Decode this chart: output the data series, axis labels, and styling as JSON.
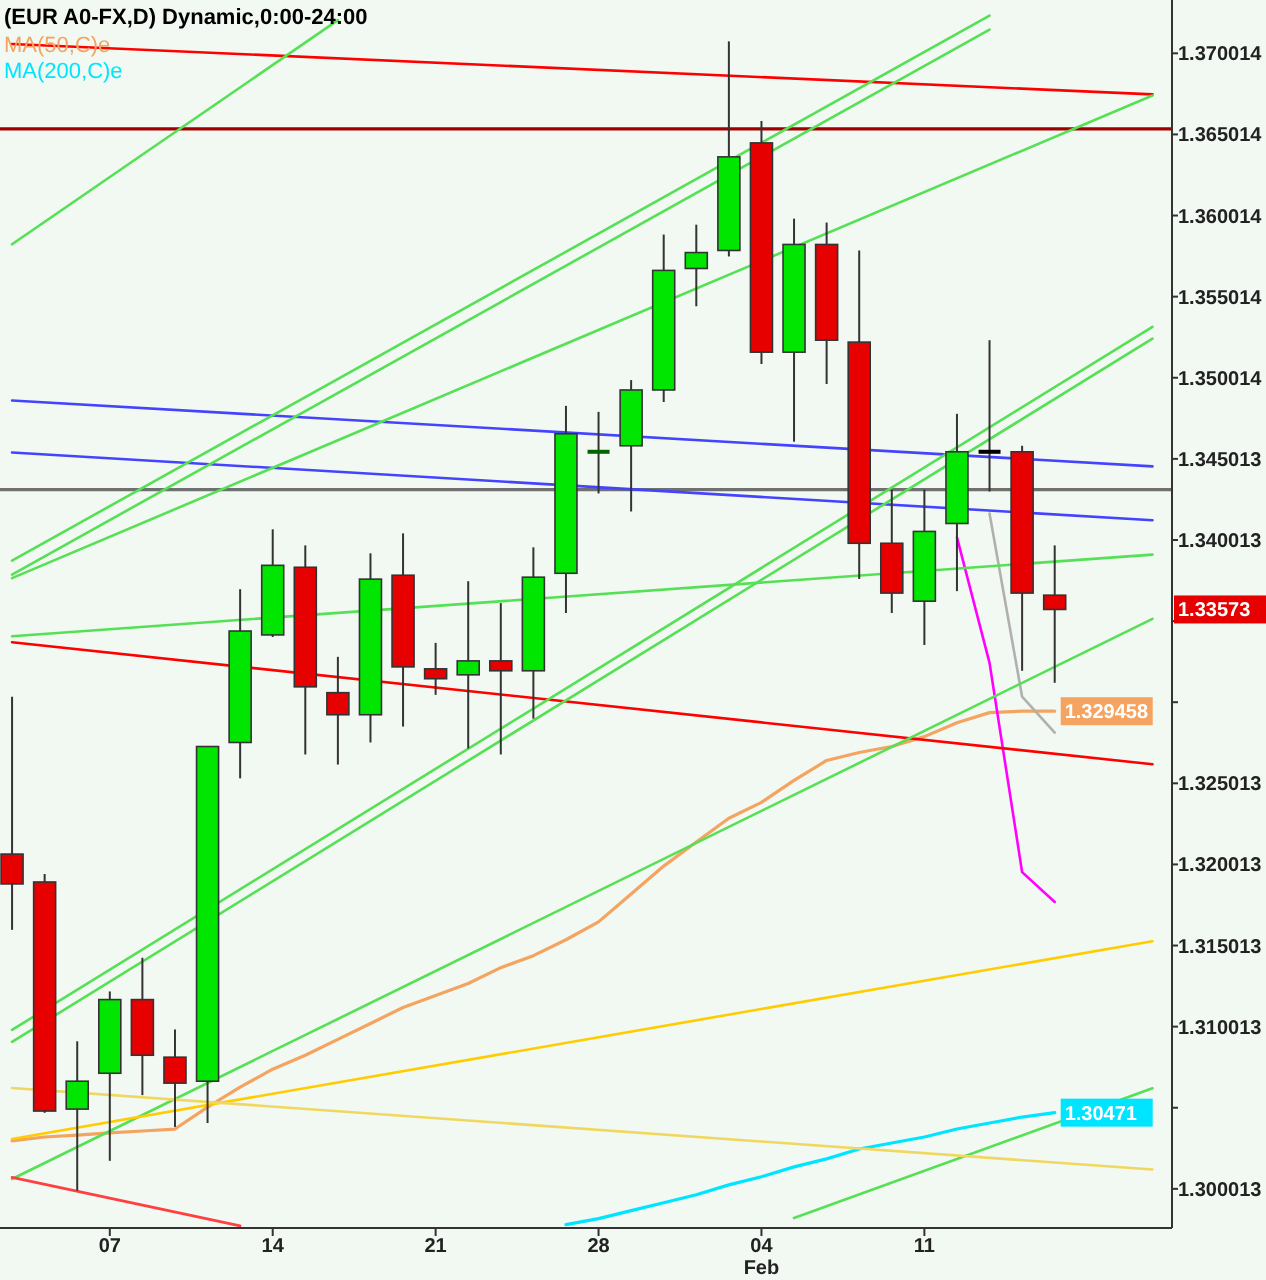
{
  "chart_data": {
    "type": "candlestick",
    "title": "(EUR A0-FX,D) Dynamic,0:00-24:00",
    "legend": "top left",
    "grid": false,
    "marker": "none",
    "categories": [
      null,
      null,
      null,
      "07",
      null,
      null,
      null,
      null,
      "14",
      null,
      null,
      null,
      null,
      "21",
      null,
      null,
      null,
      null,
      "28",
      null,
      null,
      null,
      null,
      "04\nFeb",
      null,
      null,
      null,
      null,
      "11",
      null,
      null,
      null,
      null,
      null,
      null,
      null
    ],
    "ohlc": [
      [
        1.32065,
        1.33035,
        1.31598,
        1.31881
      ],
      [
        1.31893,
        1.31942,
        1.3047,
        1.30481
      ],
      [
        1.30493,
        1.30911,
        1.2999,
        1.30665
      ],
      [
        1.30714,
        1.31218,
        1.30174,
        1.31168
      ],
      [
        1.31168,
        1.31426,
        1.30579,
        1.30825
      ],
      [
        1.30813,
        1.30984,
        1.30383,
        1.30653
      ],
      [
        1.30665,
        1.32728,
        1.30407,
        1.32728
      ],
      [
        1.32753,
        1.33698,
        1.32532,
        1.3344
      ],
      [
        1.33416,
        1.34067,
        1.33403,
        1.33845
      ],
      [
        1.33833,
        1.33968,
        1.32679,
        1.33096
      ],
      [
        1.3306,
        1.33281,
        1.32617,
        1.32924
      ],
      [
        1.32924,
        1.33919,
        1.32753,
        1.3376
      ],
      [
        1.33784,
        1.34042,
        1.32851,
        1.33219
      ],
      [
        1.33207,
        1.33367,
        1.33047,
        1.33146
      ],
      [
        1.3317,
        1.33747,
        1.32716,
        1.33256
      ],
      [
        1.33256,
        1.33612,
        1.32679,
        1.33195
      ],
      [
        1.33195,
        1.33956,
        1.329,
        1.33772
      ],
      [
        1.33796,
        1.34828,
        1.33551,
        1.34656
      ],
      [
        1.34545,
        1.34791,
        1.34288,
        1.34545
      ],
      [
        1.34582,
        1.34987,
        1.34177,
        1.34926
      ],
      [
        1.34926,
        1.35884,
        1.34852,
        1.35663
      ],
      [
        1.35675,
        1.35945,
        1.35442,
        1.35773
      ],
      [
        1.35786,
        1.37075,
        1.35749,
        1.36363
      ],
      [
        1.36449,
        1.36584,
        1.35086,
        1.35159
      ],
      [
        1.35159,
        1.35982,
        1.34607,
        1.35823
      ],
      [
        1.35823,
        1.35958,
        1.34963,
        1.35233
      ],
      [
        1.35221,
        1.35786,
        1.3376,
        1.33981
      ],
      [
        1.33981,
        1.34312,
        1.33551,
        1.33674
      ],
      [
        1.33624,
        1.34312,
        1.33354,
        1.34054
      ],
      [
        1.34103,
        1.34779,
        1.33686,
        1.34545
      ],
      [
        1.34545,
        1.35233,
        1.343,
        1.34545
      ],
      [
        1.34545,
        1.34582,
        1.33195,
        1.33674
      ],
      [
        1.33661,
        1.33968,
        1.33121,
        1.33573
      ],
      null,
      null,
      null
    ],
    "colors": [
      "#e60000",
      "#e60000",
      "#00e600",
      "#00e600",
      "#e60000",
      "#e60000",
      "#00e600",
      "#00e600",
      "#00e600",
      "#e60000",
      "#e60000",
      "#00e600",
      "#e60000",
      "#e60000",
      "#00e600",
      "#e60000",
      "#00e600",
      "#00e600",
      "#006400",
      "#00e600",
      "#00e600",
      "#00e600",
      "#00e600",
      "#e60000",
      "#00e600",
      "#e60000",
      "#e60000",
      "#e60000",
      "#00e600",
      "#00e600",
      "#000000",
      "#e60000",
      "#e60000",
      null,
      null,
      null
    ],
    "ylim": [
      1.2976,
      1.3733
    ],
    "yticks": [
      1.370014,
      1.365014,
      1.360014,
      1.355014,
      1.350014,
      1.345013,
      1.340013,
      {
        "value": 1.335013,
        "label": null
      },
      {
        "value": 1.330013,
        "label": null
      },
      1.325013,
      1.320013,
      1.315013,
      1.310013,
      {
        "value": 1.305013,
        "label": null
      },
      1.300013
    ],
    "ref_lines": [
      {
        "axis": "y",
        "value": 1.36535,
        "color": "#a00000"
      },
      {
        "axis": "y",
        "value": 1.34312,
        "color": "#707070"
      }
    ],
    "value_labels": [
      null,
      null,
      null,
      null,
      null,
      null,
      null,
      null,
      null,
      null,
      null,
      null,
      null,
      null,
      null,
      null,
      null,
      null,
      null,
      null,
      null,
      null,
      null,
      null,
      null,
      null,
      null,
      null,
      null,
      null,
      null,
      null,
      "1.33573",
      null,
      null,
      null
    ],
    "series": [
      {
        "name": "MA(50,C)e",
        "type": "line",
        "color": "#f4a460",
        "values": [
          1.30297,
          1.30321,
          1.30333,
          1.30346,
          1.30358,
          1.3037,
          1.30505,
          1.30628,
          1.30739,
          1.30825,
          1.30923,
          1.31021,
          1.31119,
          1.31193,
          1.31267,
          1.31365,
          1.31439,
          1.31537,
          1.31647,
          1.31819,
          1.31991,
          1.32139,
          1.32286,
          1.32384,
          1.32519,
          1.32642,
          1.32691,
          1.32728,
          1.32789,
          1.32875,
          1.32937,
          1.32946,
          1.329458,
          null,
          null,
          null
        ],
        "value_labels": [
          null,
          null,
          null,
          null,
          null,
          null,
          null,
          null,
          null,
          null,
          null,
          null,
          null,
          null,
          null,
          null,
          null,
          null,
          null,
          null,
          null,
          null,
          null,
          null,
          null,
          null,
          null,
          null,
          null,
          null,
          null,
          null,
          "1.329458",
          null,
          null,
          null
        ]
      },
      {
        "name": "MA(200,C)e",
        "type": "line",
        "color": "#00e5ff",
        "values": [
          null,
          null,
          null,
          null,
          null,
          null,
          null,
          null,
          null,
          null,
          null,
          null,
          null,
          null,
          null,
          null,
          null,
          1.29781,
          1.29818,
          1.29867,
          1.29916,
          1.29965,
          1.30026,
          1.30076,
          1.30137,
          1.30186,
          1.30247,
          1.30284,
          1.30321,
          1.3037,
          1.30407,
          1.30444,
          1.30471,
          null,
          null,
          null
        ],
        "value_labels": [
          null,
          null,
          null,
          null,
          null,
          null,
          null,
          null,
          null,
          null,
          null,
          null,
          null,
          null,
          null,
          null,
          null,
          null,
          null,
          null,
          null,
          null,
          null,
          null,
          null,
          null,
          null,
          null,
          null,
          null,
          null,
          null,
          "1.30471",
          null,
          null,
          null
        ]
      },
      {
        "type": "line",
        "color": "#ff00ff",
        "values": [
          null,
          null,
          null,
          null,
          null,
          null,
          null,
          null,
          null,
          null,
          null,
          null,
          null,
          null,
          null,
          null,
          null,
          null,
          null,
          null,
          null,
          null,
          null,
          null,
          null,
          null,
          null,
          null,
          null,
          1.34017,
          1.33244,
          1.31954,
          1.3177,
          null,
          null,
          null
        ]
      },
      {
        "type": "line",
        "color": "#b0b0b0",
        "values": [
          null,
          null,
          null,
          null,
          null,
          null,
          null,
          null,
          null,
          null,
          null,
          null,
          null,
          null,
          null,
          null,
          null,
          null,
          null,
          null,
          null,
          null,
          null,
          null,
          null,
          null,
          null,
          null,
          null,
          null,
          1.34165,
          1.33035,
          1.32814,
          null,
          null,
          null
        ]
      },
      {
        "type": "line",
        "color": "#ff0000",
        "values": [
          1.37059,
          null,
          null,
          null,
          null,
          null,
          null,
          null,
          null,
          null,
          null,
          null,
          null,
          null,
          null,
          null,
          null,
          null,
          null,
          null,
          null,
          null,
          null,
          null,
          null,
          null,
          null,
          null,
          null,
          null,
          null,
          null,
          null,
          null,
          null,
          1.36748
        ]
      },
      {
        "type": "line",
        "color": "#4444ff",
        "values": [
          1.34861,
          null,
          null,
          null,
          null,
          null,
          null,
          null,
          null,
          null,
          null,
          null,
          null,
          null,
          null,
          null,
          null,
          null,
          null,
          null,
          null,
          null,
          null,
          null,
          null,
          null,
          null,
          null,
          null,
          null,
          null,
          null,
          null,
          null,
          null,
          1.34455
        ]
      },
      {
        "type": "line",
        "color": "#4444ff",
        "values": [
          1.34541,
          null,
          null,
          null,
          null,
          null,
          null,
          null,
          null,
          null,
          null,
          null,
          null,
          null,
          null,
          null,
          null,
          null,
          null,
          null,
          null,
          null,
          null,
          null,
          null,
          null,
          null,
          null,
          null,
          null,
          null,
          null,
          null,
          null,
          null,
          1.34123
        ]
      },
      {
        "type": "line",
        "color": "#ff0000",
        "values": [
          1.33371,
          null,
          null,
          null,
          null,
          null,
          null,
          null,
          null,
          null,
          null,
          null,
          null,
          null,
          null,
          null,
          null,
          null,
          null,
          null,
          null,
          null,
          null,
          null,
          null,
          null,
          null,
          null,
          null,
          null,
          null,
          null,
          null,
          null,
          null,
          1.32619
        ]
      },
      {
        "type": "line",
        "color": "#55e055",
        "values": [
          1.35824,
          null,
          null,
          null,
          null,
          null,
          null,
          null,
          null,
          null,
          1.37206,
          null,
          null,
          null,
          null,
          null,
          null,
          null,
          null,
          null,
          null,
          null,
          null,
          null,
          null,
          null,
          null,
          null,
          null,
          null,
          null,
          null,
          null,
          null,
          null,
          null
        ]
      },
      {
        "type": "line",
        "color": "#55e055",
        "values": [
          1.33874,
          null,
          null,
          null,
          null,
          null,
          null,
          null,
          null,
          null,
          null,
          null,
          null,
          null,
          null,
          null,
          null,
          null,
          null,
          null,
          null,
          null,
          null,
          null,
          null,
          null,
          null,
          null,
          null,
          null,
          1.37234,
          null,
          null,
          null,
          null,
          null
        ]
      },
      {
        "type": "line",
        "color": "#55e055",
        "values": [
          1.33788,
          null,
          null,
          null,
          null,
          null,
          null,
          null,
          null,
          null,
          null,
          null,
          null,
          null,
          null,
          null,
          null,
          null,
          null,
          null,
          null,
          null,
          null,
          null,
          null,
          null,
          null,
          null,
          null,
          null,
          1.37148,
          null,
          null,
          null,
          null,
          null
        ]
      },
      {
        "type": "line",
        "color": "#55e055",
        "values": [
          1.33766,
          null,
          null,
          null,
          null,
          null,
          null,
          null,
          null,
          null,
          null,
          null,
          null,
          null,
          null,
          null,
          null,
          null,
          null,
          null,
          null,
          null,
          null,
          null,
          null,
          null,
          null,
          null,
          null,
          null,
          null,
          null,
          null,
          null,
          null,
          1.36741
        ]
      },
      {
        "type": "line",
        "color": "#55e055",
        "values": [
          1.33408,
          null,
          null,
          null,
          null,
          null,
          null,
          null,
          null,
          null,
          null,
          null,
          null,
          null,
          null,
          null,
          null,
          null,
          null,
          null,
          null,
          null,
          null,
          null,
          null,
          null,
          null,
          null,
          null,
          null,
          null,
          null,
          null,
          null,
          null,
          1.33911
        ]
      },
      {
        "type": "line",
        "color": "#55e055",
        "values": [
          1.30981,
          null,
          null,
          null,
          null,
          null,
          null,
          null,
          null,
          null,
          null,
          null,
          null,
          null,
          null,
          null,
          null,
          null,
          null,
          null,
          null,
          null,
          null,
          null,
          null,
          null,
          null,
          null,
          null,
          null,
          null,
          null,
          null,
          null,
          null,
          1.35315
        ]
      },
      {
        "type": "line",
        "color": "#55e055",
        "values": [
          1.30907,
          null,
          null,
          null,
          null,
          null,
          null,
          null,
          null,
          null,
          null,
          null,
          null,
          null,
          null,
          null,
          null,
          null,
          null,
          null,
          null,
          null,
          null,
          null,
          null,
          null,
          null,
          null,
          null,
          null,
          null,
          null,
          null,
          null,
          null,
          1.35242
        ]
      },
      {
        "type": "line",
        "color": "#55e055",
        "values": [
          1.30062,
          null,
          null,
          null,
          null,
          null,
          null,
          null,
          null,
          null,
          null,
          null,
          null,
          null,
          null,
          null,
          null,
          null,
          null,
          null,
          null,
          null,
          null,
          null,
          null,
          null,
          null,
          null,
          null,
          null,
          null,
          null,
          null,
          null,
          null,
          1.33515
        ]
      },
      {
        "type": "line",
        "color": "#55e055",
        "values": [
          null,
          null,
          null,
          null,
          null,
          null,
          null,
          null,
          null,
          null,
          null,
          null,
          null,
          null,
          null,
          null,
          null,
          null,
          null,
          null,
          null,
          null,
          null,
          null,
          1.29822,
          null,
          null,
          null,
          null,
          null,
          null,
          null,
          null,
          null,
          null,
          1.30621
        ]
      },
      {
        "type": "line",
        "color": "#ff4040",
        "values": [
          1.30072,
          null,
          null,
          null,
          null,
          null,
          null,
          1.29773,
          null,
          null,
          null,
          null,
          null,
          null,
          null,
          null,
          null,
          null,
          null,
          null,
          null,
          null,
          null,
          null,
          null,
          null,
          null,
          null,
          null,
          null,
          null,
          null,
          null,
          null,
          null,
          null
        ]
      },
      {
        "type": "line",
        "color": "#ffcc00",
        "values": [
          1.30309,
          null,
          null,
          null,
          null,
          null,
          null,
          null,
          null,
          null,
          null,
          null,
          null,
          null,
          null,
          null,
          null,
          null,
          null,
          null,
          null,
          null,
          null,
          null,
          null,
          null,
          null,
          null,
          null,
          null,
          null,
          null,
          null,
          null,
          null,
          1.31528
        ]
      },
      {
        "type": "line",
        "color": "#f0d860",
        "values": [
          1.30623,
          null,
          null,
          null,
          null,
          null,
          null,
          null,
          null,
          null,
          null,
          null,
          null,
          null,
          null,
          null,
          null,
          null,
          null,
          null,
          null,
          null,
          null,
          null,
          null,
          null,
          null,
          null,
          null,
          null,
          null,
          null,
          null,
          null,
          null,
          1.30121
        ]
      }
    ]
  }
}
